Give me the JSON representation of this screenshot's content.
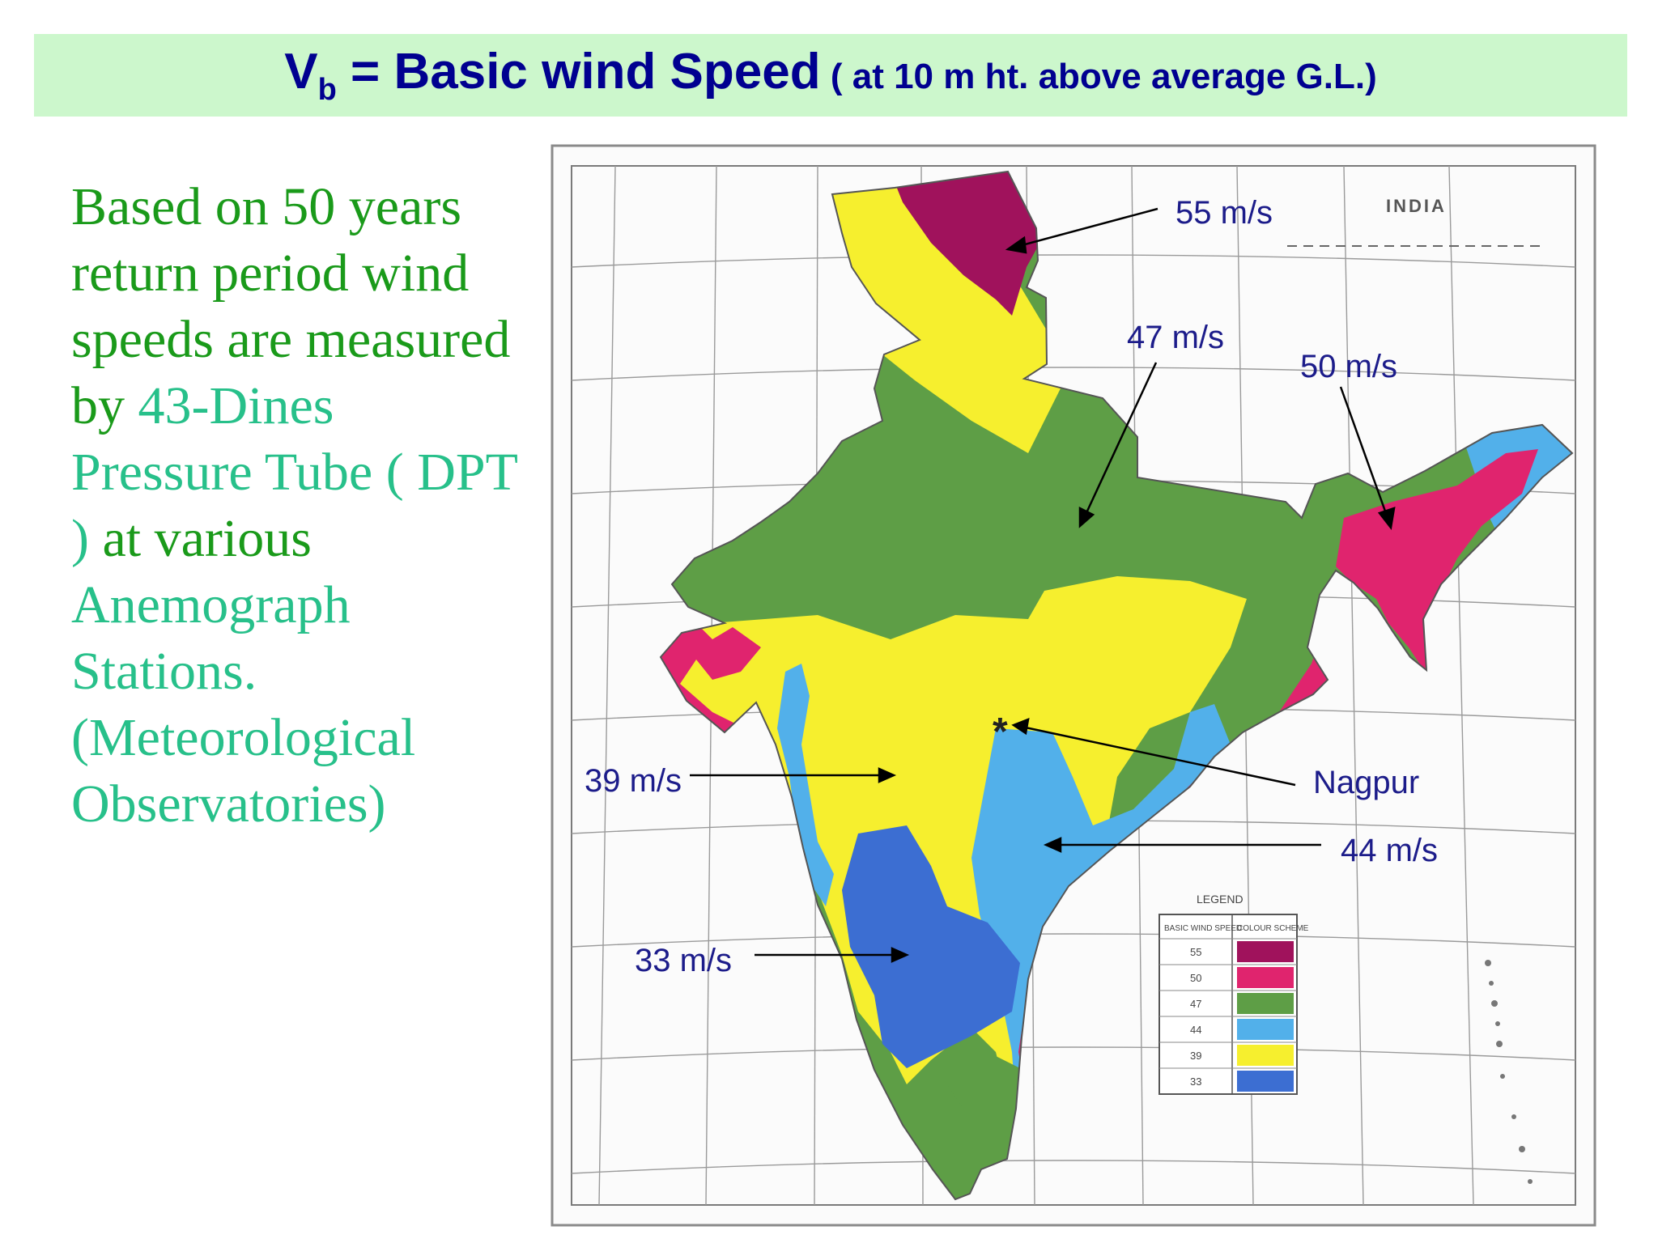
{
  "title": {
    "main_prefix": "V",
    "main_subscript": "b",
    "main_text": " = Basic wind Speed",
    "sub_text": " ( at 10 m ht. above average G.L.)"
  },
  "description": {
    "part1": "Based on 50 years return period wind speeds are measured by ",
    "part2": "43-Dines Pressure Tube ( DPT )",
    "part3": " at various ",
    "part4": "Anemograph Stations. (Meteorological Observatories)"
  },
  "map": {
    "country_label": "INDIA",
    "marker_symbol": "*",
    "callouts": {
      "v55": "55 m/s",
      "v47": "47 m/s",
      "v50": "50 m/s",
      "v39": "39 m/s",
      "nagpur": "Nagpur",
      "v44": "44 m/s",
      "v33": "33 m/s"
    },
    "legend": {
      "title": "LEGEND",
      "col1": "BASIC WIND SPEED",
      "col2": "COLOUR SCHEME",
      "rows": [
        {
          "value": "55",
          "color": "#a0125c"
        },
        {
          "value": "50",
          "color": "#e0246e"
        },
        {
          "value": "47",
          "color": "#5e9e46"
        },
        {
          "value": "44",
          "color": "#52b0ea"
        },
        {
          "value": "39",
          "color": "#f6ef2e"
        },
        {
          "value": "33",
          "color": "#3c6ed2"
        }
      ]
    },
    "zone_colors": {
      "v55": "#a0125c",
      "v50": "#e0246e",
      "v47": "#5e9e46",
      "v44": "#52b0ea",
      "v39": "#f6ef2e",
      "v33": "#3c6ed2"
    }
  }
}
